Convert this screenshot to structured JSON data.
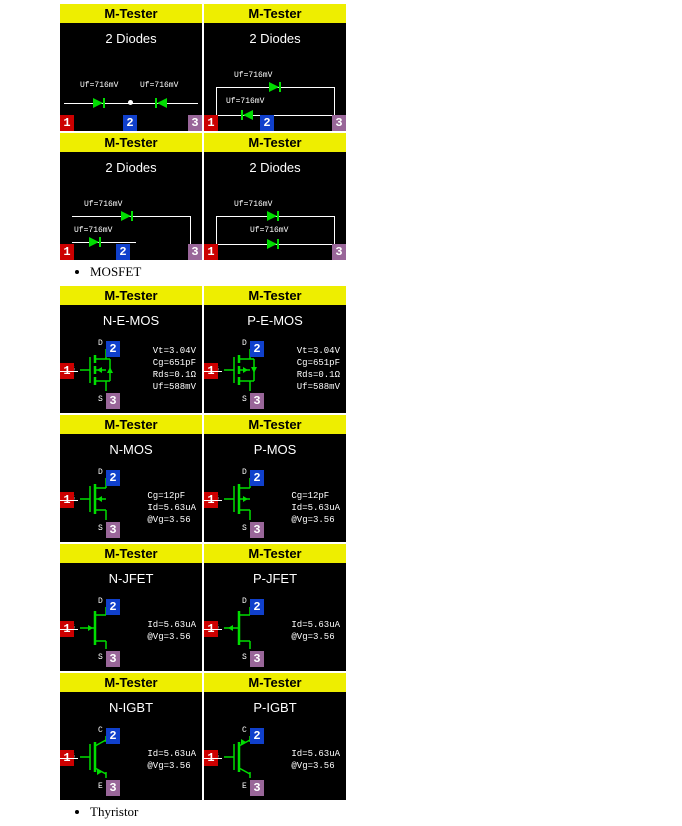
{
  "colors": {
    "header_bg": "#eeee00",
    "header_fg": "#000000",
    "tile_bg": "#000000",
    "text": "#ffffff",
    "pin1": "#cc0000",
    "pin2": "#1040cc",
    "pin3": "#996699",
    "diode_green": "#00dd00",
    "wire": "#ffffff",
    "sym_green": "#00dd00"
  },
  "fonts": {
    "header_size": 13,
    "comp_size": 13,
    "uf_size": 8,
    "param_size": 9,
    "pin_size": 12
  },
  "header": "M-Tester",
  "diodes": {
    "title": "2 Diodes",
    "uf": "Uf=716mV",
    "tiles": [
      {
        "layout": "common_cathode_center"
      },
      {
        "layout": "stacked_top_bottom"
      },
      {
        "layout": "pin1_2_top_wrap"
      },
      {
        "layout": "parallel_right"
      }
    ]
  },
  "sections": [
    {
      "label": "MOSFET",
      "rows": [
        [
          {
            "comp": "N-E-MOS",
            "pins": {
              "D": "2",
              "G": "1",
              "S": "3"
            },
            "sym": "emos",
            "ch": "n",
            "params": [
              "Vt=3.04V",
              "Cg=651pF",
              "Rds=0.1Ω",
              "Uf=588mV"
            ]
          },
          {
            "comp": "P-E-MOS",
            "pins": {
              "D": "2",
              "G": "1",
              "S": "3"
            },
            "sym": "emos",
            "ch": "p",
            "params": [
              "Vt=3.04V",
              "Cg=651pF",
              "Rds=0.1Ω",
              "Uf=588mV"
            ]
          }
        ],
        [
          {
            "comp": "N-MOS",
            "pins": {
              "D": "2",
              "G": "1",
              "S": "3"
            },
            "sym": "dmos",
            "ch": "n",
            "params": [
              "Cg=12pF",
              "Id=5.63uA",
              "@Vg=3.56"
            ]
          },
          {
            "comp": "P-MOS",
            "pins": {
              "D": "2",
              "G": "1",
              "S": "3"
            },
            "sym": "dmos",
            "ch": "p",
            "params": [
              "Cg=12pF",
              "Id=5.63uA",
              "@Vg=3.56"
            ]
          }
        ],
        [
          {
            "comp": "N-JFET",
            "pins": {
              "D": "2",
              "G": "1",
              "S": "3"
            },
            "sym": "jfet",
            "ch": "n",
            "params": [
              "Id=5.63uA",
              "@Vg=3.56"
            ]
          },
          {
            "comp": "P-JFET",
            "pins": {
              "D": "2",
              "G": "1",
              "S": "3"
            },
            "sym": "jfet",
            "ch": "p",
            "params": [
              "Id=5.63uA",
              "@Vg=3.56"
            ]
          }
        ],
        [
          {
            "comp": "N-IGBT",
            "pins": {
              "C": "2",
              "G": "1",
              "E": "3"
            },
            "sym": "igbt",
            "ch": "n",
            "params": [
              "Id=5.63uA",
              "@Vg=3.56"
            ]
          },
          {
            "comp": "P-IGBT",
            "pins": {
              "C": "2",
              "G": "1",
              "E": "3"
            },
            "sym": "igbt",
            "ch": "p",
            "params": [
              "Id=5.63uA",
              "@Vg=3.56"
            ]
          }
        ]
      ]
    },
    {
      "label": "Thyristor",
      "rows": []
    }
  ]
}
